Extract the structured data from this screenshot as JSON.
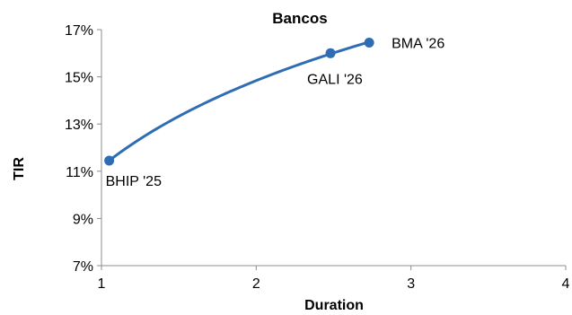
{
  "chart_data": {
    "type": "scatter",
    "title": "Bancos",
    "xlabel": "Duration",
    "ylabel": "TIR",
    "xlim": [
      1,
      4
    ],
    "ylim": [
      7,
      17
    ],
    "x_ticks": [
      1,
      2,
      3,
      4
    ],
    "x_tick_labels": [
      "1",
      "2",
      "3",
      "4"
    ],
    "y_ticks": [
      7,
      9,
      11,
      13,
      15,
      17
    ],
    "y_tick_labels": [
      "7%",
      "9%",
      "11%",
      "13%",
      "15%",
      "17%"
    ],
    "grid": false,
    "trendline": "logarithmic",
    "colors": {
      "series": "#2E6DB4",
      "axis": "#8c8c8c"
    },
    "series": [
      {
        "points": [
          {
            "label": "BHIP '25",
            "x": 1.05,
            "y": 11.45
          },
          {
            "label": "GALI '26",
            "x": 2.48,
            "y": 16.0
          },
          {
            "label": "BMA '26",
            "x": 2.73,
            "y": 16.45
          }
        ]
      }
    ]
  }
}
